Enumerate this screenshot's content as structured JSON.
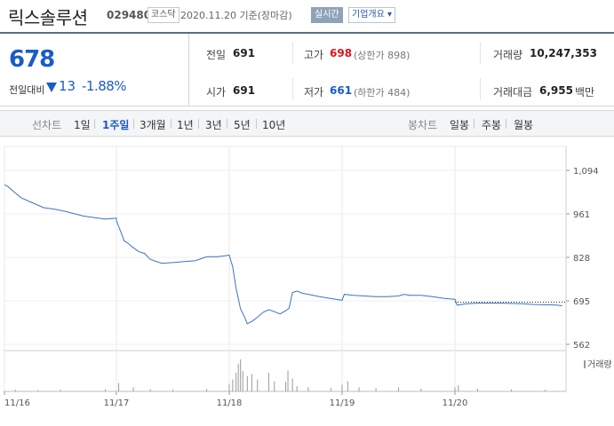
{
  "header": {
    "company_name": "릭스솔루션",
    "stock_code": "029480",
    "market": "코스닥",
    "date_text": "2020.11.20 기준(장마감)",
    "realtime_label": "실시간",
    "company_info_label": "기업개요 ▾"
  },
  "summary": {
    "current_price": "678",
    "change_label": "전일대비",
    "change_amount": "13",
    "change_rate": "-1.88%",
    "prev_close_label": "전일",
    "prev_close": "691",
    "open_label": "시가",
    "open": "691",
    "high_label": "고가",
    "high": "698",
    "high_sub": "(상한가 898)",
    "low_label": "저가",
    "low": "661",
    "low_sub": "(하한가 484)",
    "volume_label": "거래량",
    "volume": "10,247,353",
    "value_label": "거래대금",
    "value": "6,955",
    "value_unit": "백만",
    "colors": {
      "up": "#e0141e",
      "down": "#1b5bc9"
    }
  },
  "tabs": {
    "line_chart_label": "선차트",
    "line_tabs": [
      "1일",
      "1주일",
      "3개월",
      "1년",
      "3년",
      "5년",
      "10년"
    ],
    "active": "1주일",
    "candle_chart_label": "봉차트",
    "candle_tabs": [
      "일봉",
      "주봉",
      "월봉"
    ]
  },
  "chart_data": {
    "type": "line",
    "x_labels": [
      "11/16",
      "11/17",
      "11/18",
      "11/19",
      "11/20"
    ],
    "y_ticks": [
      1094,
      961,
      828,
      695,
      562
    ],
    "ylim": [
      562,
      1094
    ],
    "reference_line": 691,
    "volume_label": "거래량",
    "price": [
      [
        0,
        1050
      ],
      [
        0.03,
        1045
      ],
      [
        0.08,
        1030
      ],
      [
        0.15,
        1010
      ],
      [
        0.25,
        995
      ],
      [
        0.35,
        980
      ],
      [
        0.45,
        975
      ],
      [
        0.55,
        968
      ],
      [
        0.62,
        962
      ],
      [
        0.7,
        955
      ],
      [
        0.8,
        950
      ],
      [
        0.9,
        945
      ],
      [
        1.0,
        948
      ],
      [
        1.0,
        940
      ],
      [
        1.04,
        905
      ],
      [
        1.07,
        878
      ],
      [
        1.1,
        872
      ],
      [
        1.14,
        860
      ],
      [
        1.2,
        845
      ],
      [
        1.25,
        840
      ],
      [
        1.3,
        822
      ],
      [
        1.4,
        810
      ],
      [
        1.5,
        812
      ],
      [
        1.6,
        815
      ],
      [
        1.7,
        818
      ],
      [
        1.8,
        830
      ],
      [
        1.9,
        830
      ],
      [
        2.0,
        835
      ],
      [
        2.03,
        800
      ],
      [
        2.06,
        735
      ],
      [
        2.1,
        670
      ],
      [
        2.13,
        650
      ],
      [
        2.16,
        625
      ],
      [
        2.2,
        632
      ],
      [
        2.25,
        645
      ],
      [
        2.3,
        660
      ],
      [
        2.35,
        668
      ],
      [
        2.4,
        662
      ],
      [
        2.45,
        655
      ],
      [
        2.5,
        665
      ],
      [
        2.53,
        672
      ],
      [
        2.56,
        720
      ],
      [
        2.6,
        725
      ],
      [
        2.65,
        718
      ],
      [
        2.7,
        715
      ],
      [
        2.8,
        708
      ],
      [
        2.9,
        702
      ],
      [
        3.0,
        697
      ],
      [
        3.02,
        715
      ],
      [
        3.1,
        712
      ],
      [
        3.2,
        710
      ],
      [
        3.3,
        708
      ],
      [
        3.4,
        708
      ],
      [
        3.5,
        710
      ],
      [
        3.55,
        715
      ],
      [
        3.6,
        712
      ],
      [
        3.7,
        712
      ],
      [
        3.8,
        708
      ],
      [
        3.9,
        703
      ],
      [
        4.0,
        700
      ],
      [
        4.02,
        682
      ],
      [
        4.1,
        686
      ],
      [
        4.2,
        688
      ],
      [
        4.3,
        688
      ],
      [
        4.4,
        688
      ],
      [
        4.5,
        687
      ],
      [
        4.6,
        686
      ],
      [
        4.7,
        684
      ],
      [
        4.8,
        683
      ],
      [
        4.9,
        682
      ],
      [
        4.95,
        680
      ]
    ],
    "volume": [
      [
        0.1,
        0.05
      ],
      [
        0.3,
        0.04
      ],
      [
        0.5,
        0.05
      ],
      [
        0.9,
        0.06
      ],
      [
        1.02,
        0.25
      ],
      [
        1.15,
        0.12
      ],
      [
        1.3,
        0.06
      ],
      [
        1.5,
        0.05
      ],
      [
        1.8,
        0.07
      ],
      [
        2.0,
        0.22
      ],
      [
        2.03,
        0.35
      ],
      [
        2.06,
        0.55
      ],
      [
        2.08,
        0.82
      ],
      [
        2.1,
        0.95
      ],
      [
        2.12,
        0.6
      ],
      [
        2.16,
        0.45
      ],
      [
        2.2,
        0.52
      ],
      [
        2.25,
        0.35
      ],
      [
        2.35,
        0.55
      ],
      [
        2.4,
        0.3
      ],
      [
        2.5,
        0.28
      ],
      [
        2.52,
        0.62
      ],
      [
        2.56,
        0.38
      ],
      [
        2.6,
        0.15
      ],
      [
        2.7,
        0.12
      ],
      [
        2.9,
        0.1
      ],
      [
        3.0,
        0.2
      ],
      [
        3.05,
        0.3
      ],
      [
        3.15,
        0.12
      ],
      [
        3.3,
        0.1
      ],
      [
        3.5,
        0.12
      ],
      [
        3.7,
        0.08
      ],
      [
        4.0,
        0.12
      ],
      [
        4.03,
        0.18
      ],
      [
        4.2,
        0.08
      ],
      [
        4.5,
        0.06
      ],
      [
        4.8,
        0.05
      ]
    ]
  }
}
